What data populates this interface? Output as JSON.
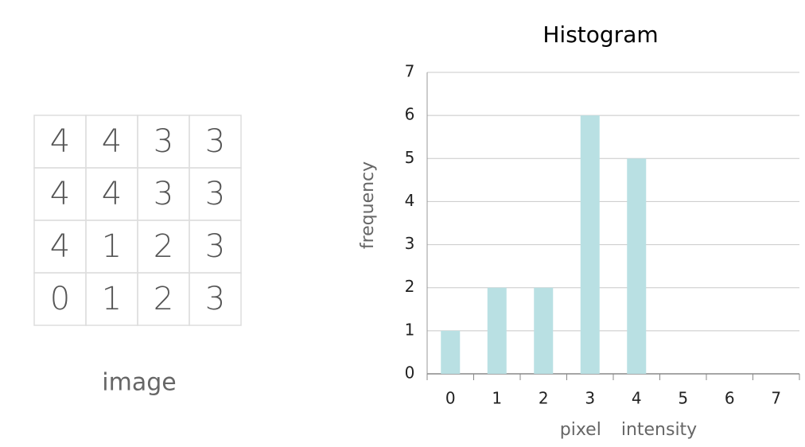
{
  "image_grid": {
    "rows": [
      [
        4,
        4,
        3,
        3
      ],
      [
        4,
        4,
        3,
        3
      ],
      [
        4,
        1,
        2,
        3
      ],
      [
        0,
        1,
        2,
        3
      ]
    ],
    "label": "image"
  },
  "chart_data": {
    "type": "bar",
    "title": "Histogram",
    "x_label": "pixel intensity",
    "y_label": "frequency",
    "categories": [
      "0",
      "1",
      "2",
      "3",
      "4",
      "5",
      "6",
      "7"
    ],
    "values": [
      1,
      2,
      2,
      6,
      5,
      0,
      0,
      0
    ],
    "color": "#b9e0e3",
    "ylim": [
      0,
      7
    ],
    "yticks": [
      0,
      1,
      2,
      3,
      4,
      5,
      6,
      7
    ],
    "grid": true
  }
}
